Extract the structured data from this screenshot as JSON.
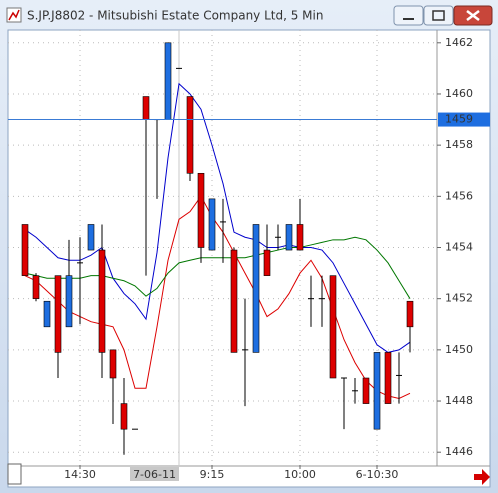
{
  "chart_data": {
    "type": "candlestick",
    "title": "S.JP.J8802 - Mitsubishi Estate Company Ltd, 5 Min",
    "categories": [
      null,
      null,
      null,
      null,
      null,
      "14:30",
      null,
      null,
      null,
      null,
      null,
      null,
      null,
      null,
      "7-06-11",
      null,
      null,
      "9:15",
      null,
      null,
      null,
      null,
      null,
      null,
      null,
      "10:00",
      null,
      null,
      null,
      null,
      null,
      null,
      "6-10:30",
      null,
      null,
      null
    ],
    "cursor_category": "7-06-11",
    "open": [
      1454.9,
      1452.9,
      1450.9,
      1452.9,
      1450.9,
      1453.4,
      1453.9,
      1453.9,
      1450.0,
      1447.9,
      1446.9,
      1459.9,
      1459.0,
      1459.0,
      1461.0,
      1459.9,
      1456.9,
      1453.9,
      1455.0,
      1453.9,
      1450.0,
      1449.9,
      1453.9,
      1454.4,
      1453.9,
      1454.9,
      1452.0,
      1452.0,
      1452.9,
      1448.9,
      1448.4,
      1448.9,
      1446.9,
      1449.9,
      1449.0,
      1451.9
    ],
    "high": [
      1454.9,
      1453.0,
      1451.9,
      1452.9,
      1454.3,
      1454.4,
      1454.9,
      1454.9,
      1450.0,
      1448.9,
      1446.9,
      1459.9,
      1459.0,
      1462.0,
      1461.0,
      1459.9,
      1456.9,
      1455.9,
      1455.9,
      1454.0,
      1452.0,
      1454.9,
      1454.9,
      1454.9,
      1454.9,
      1455.9,
      1452.9,
      1452.9,
      1452.9,
      1448.9,
      1448.9,
      1448.9,
      1449.9,
      1449.9,
      1449.9,
      1451.9
    ],
    "low": [
      1452.9,
      1451.9,
      1450.9,
      1448.9,
      1450.9,
      1451.0,
      1453.9,
      1448.9,
      1447.1,
      1445.9,
      1446.9,
      1452.9,
      1455.9,
      1459.0,
      1461.0,
      1456.6,
      1453.4,
      1453.9,
      1453.4,
      1449.9,
      1447.8,
      1449.9,
      1452.9,
      1453.9,
      1453.9,
      1453.9,
      1450.9,
      1450.9,
      1448.9,
      1446.9,
      1447.9,
      1447.9,
      1446.9,
      1447.9,
      1447.9,
      1449.9
    ],
    "close": [
      1452.9,
      1452.0,
      1451.9,
      1449.9,
      1452.9,
      1453.4,
      1454.9,
      1449.9,
      1448.9,
      1446.9,
      1446.9,
      1459.0,
      1459.0,
      1462.0,
      1461.0,
      1456.9,
      1454.0,
      1455.9,
      1455.0,
      1449.9,
      1450.0,
      1454.9,
      1452.9,
      1454.4,
      1454.9,
      1453.9,
      1452.0,
      1452.0,
      1448.9,
      1448.9,
      1448.4,
      1447.9,
      1449.9,
      1447.9,
      1449.0,
      1450.9
    ],
    "up_color": "#1e6ee0",
    "down_color": "#dd0000",
    "series": [
      {
        "color": "#0000cc",
        "values": [
          1454.7,
          1454.4,
          1454.0,
          1453.6,
          1453.5,
          1453.5,
          1453.7,
          1454.0,
          1452.8,
          1452.2,
          1451.8,
          1451.2,
          1453.8,
          1457.5,
          1460.4,
          1460.0,
          1459.4,
          1458.0,
          1456.5,
          1454.6,
          1454.4,
          1454.3,
          1454.0,
          1454.0,
          1454.1,
          1454.0,
          1454.0,
          1453.9,
          1453.4,
          1452.6,
          1451.8,
          1451.0,
          1450.2,
          1449.9,
          1450.0,
          1450.3
        ]
      },
      {
        "color": "#dd0000",
        "values": [
          1452.9,
          1452.7,
          1452.3,
          1451.9,
          1451.5,
          1451.3,
          1451.1,
          1451.0,
          1450.9,
          1450.0,
          1448.5,
          1448.5,
          1450.9,
          1453.5,
          1455.1,
          1455.4,
          1456.0,
          1455.2,
          1454.6,
          1453.8,
          1453.0,
          1452.2,
          1451.3,
          1451.6,
          1452.2,
          1453.0,
          1453.5,
          1452.8,
          1451.6,
          1450.4,
          1449.5,
          1448.8,
          1448.4,
          1448.2,
          1448.1,
          1448.3
        ]
      },
      {
        "color": "#007700",
        "values": [
          1453.0,
          1452.9,
          1452.8,
          1452.8,
          1452.8,
          1452.8,
          1452.9,
          1452.9,
          1452.8,
          1452.7,
          1452.5,
          1452.1,
          1452.4,
          1453.0,
          1453.4,
          1453.5,
          1453.6,
          1453.6,
          1453.6,
          1453.6,
          1453.6,
          1453.7,
          1453.8,
          1453.9,
          1454.0,
          1454.0,
          1454.1,
          1454.2,
          1454.3,
          1454.3,
          1454.4,
          1454.3,
          1453.9,
          1453.4,
          1452.7,
          1452.0
        ]
      }
    ],
    "crosshair_y": 1459,
    "ylim": [
      1445.5,
      1462.5
    ],
    "yticks": [
      1446,
      1448,
      1450,
      1452,
      1454,
      1456,
      1458,
      1460,
      1462
    ],
    "grid": true
  }
}
